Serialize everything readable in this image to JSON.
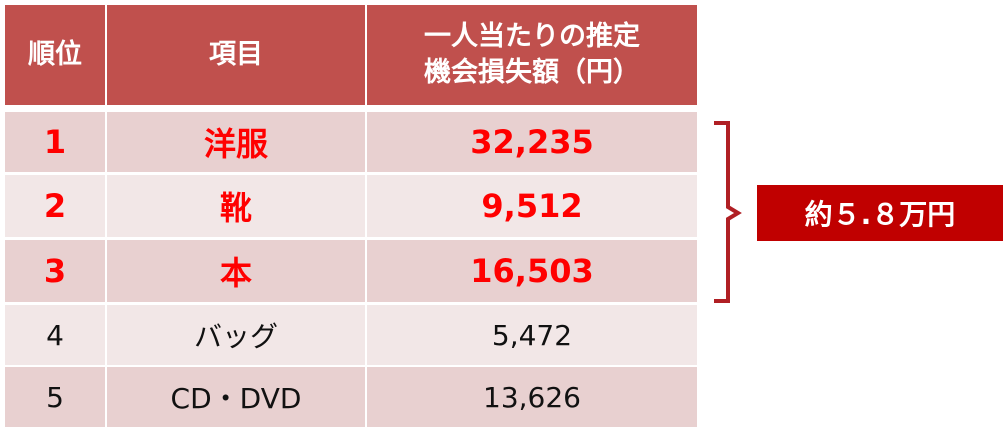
{
  "table": {
    "header": [
      "順位",
      "項目",
      [
        "一人当たりの推定",
        "機会損失額（円）"
      ]
    ],
    "rows": [
      [
        "1",
        "洋服",
        "32,235"
      ],
      [
        "2",
        "靴",
        "9,512"
      ],
      [
        "3",
        "本",
        "16,503"
      ],
      [
        "4",
        "バッグ",
        "5,472"
      ],
      [
        "5",
        "CD・DVD",
        "13,626"
      ]
    ]
  },
  "annotation": {
    "label": "約５.８万円"
  }
}
